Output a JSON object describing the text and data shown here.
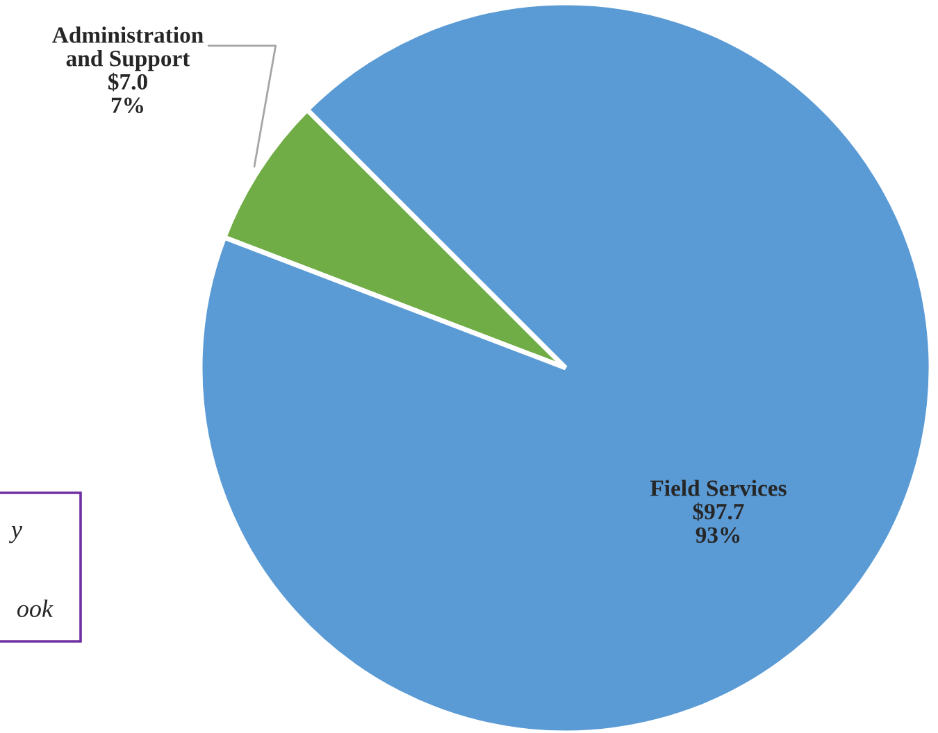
{
  "chart_data": {
    "type": "pie",
    "categories": [
      "Administration\nand Support",
      "Field Services"
    ],
    "values": [
      7.0,
      97.7
    ],
    "colors": [
      "#70ad47",
      "#5b9bd5"
    ],
    "value_labels": [
      "$7.0\n7%",
      "$97.7\n93%"
    ],
    "annotations": [
      "y",
      "ook"
    ],
    "legend": false
  }
}
